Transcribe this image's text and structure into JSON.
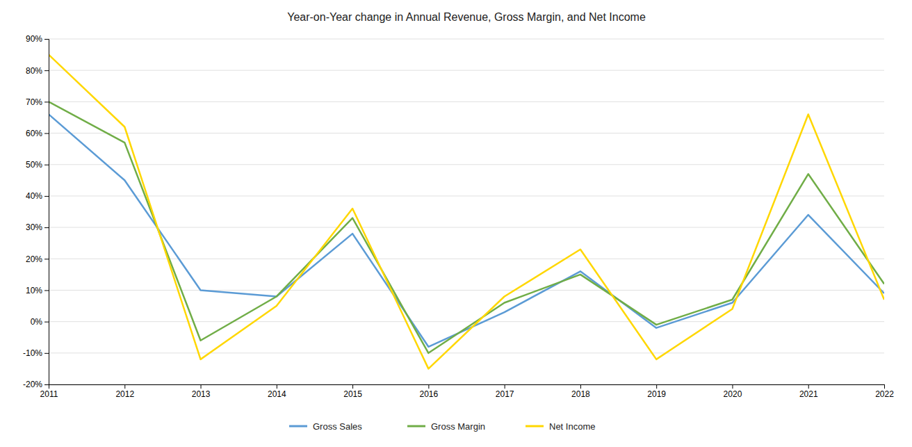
{
  "chart_data": {
    "type": "line",
    "title": "Year-on-Year change in Annual Revenue, Gross Margin, and Net Income",
    "x": [
      2011,
      2012,
      2013,
      2014,
      2015,
      2016,
      2017,
      2018,
      2019,
      2020,
      2021,
      2022
    ],
    "xlim": [
      2011,
      2022
    ],
    "xticks": [
      2011,
      2012,
      2013,
      2014,
      2015,
      2016,
      2017,
      2018,
      2019,
      2020,
      2021,
      2022
    ],
    "series": [
      {
        "name": "Gross Sales",
        "color": "#5b9bd5",
        "values": [
          66,
          45,
          10,
          8,
          28,
          -8,
          3,
          16,
          -2,
          6,
          34,
          9
        ]
      },
      {
        "name": "Gross Margin",
        "color": "#70ad47",
        "values": [
          70,
          57,
          -6,
          8,
          33,
          -10,
          6,
          15,
          -1,
          7,
          47,
          12
        ]
      },
      {
        "name": "Net Income",
        "color": "#ffd700",
        "values": [
          85,
          62,
          -12,
          5,
          36,
          -15,
          8,
          23,
          -12,
          4,
          66,
          7
        ]
      }
    ],
    "ylim": [
      -20,
      90
    ],
    "yticks": [
      {
        "value": -20,
        "label": "-20%"
      },
      {
        "value": -10,
        "label": "-10%"
      },
      {
        "value": 0,
        "label": "0%"
      },
      {
        "value": 10,
        "label": "10%"
      },
      {
        "value": 20,
        "label": "20%"
      },
      {
        "value": 30,
        "label": "30%"
      },
      {
        "value": 40,
        "label": "40%"
      },
      {
        "value": 50,
        "label": "50%"
      },
      {
        "value": 60,
        "label": "60%"
      },
      {
        "value": 70,
        "label": "70%"
      },
      {
        "value": 80,
        "label": "80%"
      },
      {
        "value": 90,
        "label": "90%"
      }
    ],
    "grid": true,
    "legend": "bottom"
  }
}
